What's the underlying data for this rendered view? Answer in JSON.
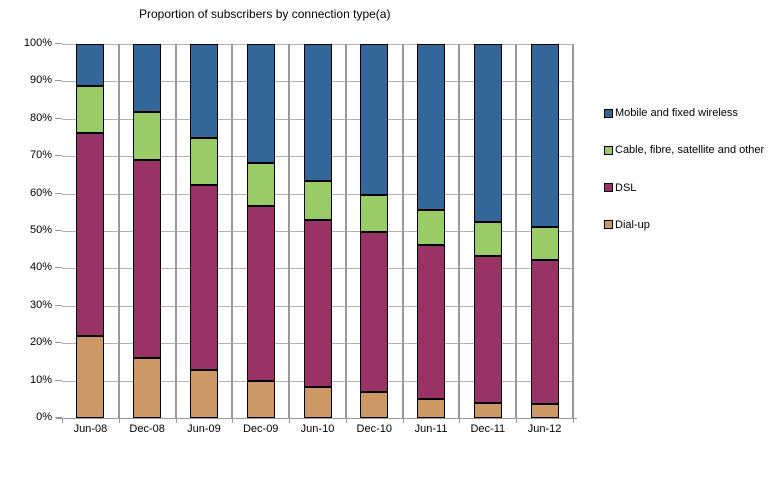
{
  "chart_data": {
    "type": "bar",
    "stacked": true,
    "title": "Proportion of subscribers by connection type(a)",
    "categories": [
      "Jun-08",
      "Dec-08",
      "Jun-09",
      "Dec-09",
      "Jun-10",
      "Dec-10",
      "Jun-11",
      "Dec-11",
      "Jun-12"
    ],
    "series": [
      {
        "name": "Dial-up",
        "color": "#CC9966",
        "values": [
          21.8,
          16.0,
          12.9,
          9.9,
          8.4,
          6.9,
          5.1,
          4.0,
          3.8
        ]
      },
      {
        "name": "DSL",
        "color": "#993366",
        "values": [
          54.5,
          53.0,
          49.5,
          46.8,
          44.5,
          42.7,
          41.2,
          39.4,
          38.5
        ]
      },
      {
        "name": "Cable, fibre, satellite and other",
        "color": "#99CC66",
        "values": [
          12.6,
          12.7,
          12.4,
          11.4,
          10.6,
          9.9,
          9.3,
          9.0,
          8.7
        ]
      },
      {
        "name": "Mobile and fixed wireless",
        "color": "#336699",
        "values": [
          11.1,
          18.3,
          25.2,
          31.9,
          36.5,
          40.5,
          44.4,
          47.6,
          49.0
        ]
      }
    ],
    "stack_order": "bottom-to-top",
    "xlabel": "",
    "ylabel": "",
    "ylim": [
      0,
      100
    ],
    "y_tick_labels": [
      "0%",
      "10%",
      "20%",
      "30%",
      "40%",
      "50%",
      "60%",
      "70%",
      "80%",
      "90%",
      "100%"
    ],
    "grid": true,
    "legend": {
      "position": "right",
      "items": [
        {
          "label": "Mobile and fixed wireless",
          "color": "#336699"
        },
        {
          "label": "Cable, fibre, satellite and other",
          "color": "#99CC66"
        },
        {
          "label": "DSL",
          "color": "#993366"
        },
        {
          "label": "Dial-up",
          "color": "#CC9966"
        }
      ]
    }
  }
}
